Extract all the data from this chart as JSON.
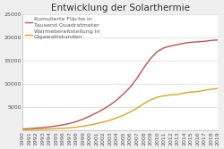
{
  "title": "Entwicklung der Solarthermie",
  "years": [
    1990,
    1991,
    1992,
    1993,
    1994,
    1995,
    1996,
    1997,
    1998,
    1999,
    2000,
    2001,
    2002,
    2003,
    2004,
    2005,
    2006,
    2007,
    2008,
    2009,
    2010,
    2011,
    2012,
    2013,
    2014,
    2015,
    2016,
    2017,
    2018,
    2019
  ],
  "flaeche": [
    200,
    280,
    380,
    500,
    650,
    850,
    1100,
    1400,
    1800,
    2350,
    3000,
    3700,
    4500,
    5400,
    6500,
    7800,
    9300,
    11200,
    13500,
    15500,
    17000,
    17800,
    18200,
    18500,
    18800,
    19000,
    19100,
    19200,
    19400,
    19500
  ],
  "waerme": [
    50,
    80,
    110,
    150,
    200,
    270,
    350,
    450,
    600,
    800,
    1050,
    1350,
    1700,
    2100,
    2600,
    3200,
    3900,
    4700,
    5700,
    6500,
    7100,
    7400,
    7600,
    7700,
    8000,
    8200,
    8300,
    8600,
    8800,
    9000
  ],
  "flaeche_color": "#c0504d",
  "waerme_color": "#daa520",
  "legend_flaeche": "Kumulierte Fläche in\nTausend Quadratmeter",
  "legend_waerme": "Wärmebereitstellung in\nGigawattstunden",
  "ylim": [
    0,
    25000
  ],
  "yticks": [
    5000,
    10000,
    15000,
    20000,
    25000
  ],
  "ytick_labels": [
    "5000",
    "10000",
    "15000",
    "20000",
    "25000"
  ],
  "bg_color": "#efefef",
  "plot_bg_color": "#ffffff",
  "grid_color": "#cccccc",
  "title_fontsize": 7.5,
  "legend_fontsize": 4.5,
  "tick_fontsize": 4.5,
  "linewidth": 1.0
}
